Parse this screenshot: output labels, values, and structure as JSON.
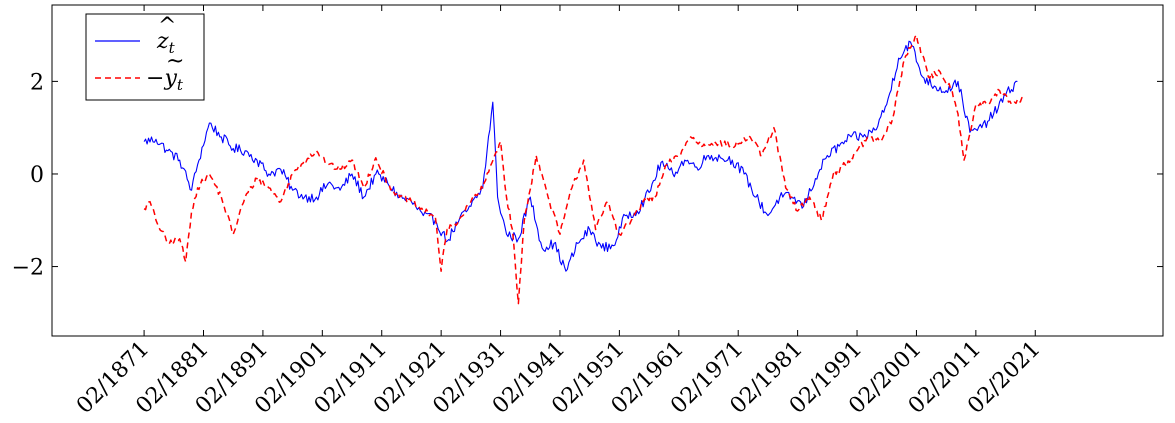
{
  "chart_data": {
    "type": "line",
    "title": "",
    "xlabel": "",
    "ylabel": "",
    "x_ticks": [
      "02/1871",
      "02/1881",
      "02/1891",
      "02/1901",
      "02/1911",
      "02/1921",
      "02/1931",
      "02/1941",
      "02/1951",
      "02/1961",
      "02/1971",
      "02/1981",
      "02/1991",
      "02/2001",
      "02/2011",
      "02/2021"
    ],
    "y_ticks": [
      "−2",
      "0",
      "2"
    ],
    "xlim": [
      1855.5,
      2042.5
    ],
    "ylim": [
      -3.5,
      3.65
    ],
    "grid": false,
    "legend_position": "top-left",
    "legend": [
      {
        "label": "ẑ_t",
        "display": "z",
        "accent": "^",
        "sub": "t",
        "color": "#0000ff",
        "dash": "solid"
      },
      {
        "label": "−ỹ_t",
        "display": "y",
        "prefix": "−",
        "accent": "~",
        "sub": "t",
        "color": "#ff0000",
        "dash": "dashed"
      }
    ],
    "series": [
      {
        "name": "ẑ_t",
        "color": "#0000ff",
        "dash": "solid",
        "x": [
          1871,
          1873,
          1875,
          1877,
          1879,
          1880,
          1882,
          1884,
          1886,
          1888,
          1890,
          1892,
          1894,
          1896,
          1898,
          1900,
          1902,
          1904,
          1906,
          1908,
          1910,
          1912,
          1914,
          1916,
          1918,
          1920,
          1922,
          1924,
          1926,
          1928,
          1929.7,
          1930.5,
          1932,
          1934,
          1936,
          1938,
          1940,
          1942,
          1944,
          1946,
          1948,
          1950,
          1952,
          1954,
          1956,
          1958,
          1960,
          1962,
          1964,
          1966,
          1968,
          1970,
          1972,
          1974,
          1976,
          1978,
          1980,
          1982,
          1984,
          1986,
          1988,
          1990,
          1992,
          1994,
          1996,
          1998,
          2000,
          2002,
          2004,
          2006,
          2008,
          2010,
          2012,
          2014,
          2016,
          2018
        ],
        "y": [
          0.7,
          0.75,
          0.5,
          0.3,
          -0.35,
          0.2,
          1.1,
          0.8,
          0.55,
          0.5,
          0.3,
          0.0,
          0.1,
          -0.35,
          -0.5,
          -0.5,
          -0.2,
          -0.35,
          0.0,
          -0.5,
          0.0,
          -0.2,
          -0.5,
          -0.6,
          -0.9,
          -1.0,
          -1.45,
          -1.0,
          -0.7,
          -0.3,
          1.55,
          -0.5,
          -1.3,
          -1.4,
          -0.5,
          -1.6,
          -1.5,
          -2.1,
          -1.5,
          -1.2,
          -1.6,
          -1.55,
          -0.9,
          -0.8,
          -0.4,
          0.25,
          0.0,
          0.3,
          0.15,
          0.4,
          0.35,
          0.3,
          0.0,
          -0.5,
          -0.9,
          -0.5,
          -0.5,
          -0.7,
          -0.1,
          0.4,
          0.6,
          0.8,
          0.8,
          0.95,
          1.5,
          2.5,
          2.85,
          2.1,
          1.9,
          1.8,
          2.0,
          0.9,
          1.0,
          1.3,
          1.7,
          2.0
        ]
      },
      {
        "name": "−ỹ_t",
        "color": "#ff0000",
        "dash": "dashed",
        "x": [
          1871,
          1872,
          1873,
          1875,
          1877,
          1878,
          1879,
          1880,
          1882,
          1884,
          1886,
          1888,
          1890,
          1892,
          1894,
          1896,
          1898,
          1900,
          1902,
          1904,
          1906,
          1908,
          1910,
          1912,
          1914,
          1916,
          1918,
          1920,
          1921,
          1922,
          1924,
          1926,
          1928,
          1930,
          1931,
          1932,
          1933,
          1934,
          1935,
          1937,
          1939,
          1941,
          1943,
          1945,
          1947,
          1949,
          1951,
          1953,
          1955,
          1957,
          1959,
          1961,
          1963,
          1965,
          1967,
          1970,
          1973,
          1975,
          1977,
          1979,
          1981,
          1983,
          1985,
          1987,
          1989,
          1991,
          1993,
          1995,
          1997,
          1999,
          2001,
          2003,
          2005,
          2007,
          2008,
          2009,
          2011,
          2013,
          2015,
          2017,
          2019
        ],
        "y": [
          -0.75,
          -0.6,
          -1.0,
          -1.5,
          -1.4,
          -1.9,
          -0.8,
          -0.3,
          0.0,
          -0.5,
          -1.3,
          -0.5,
          -0.1,
          -0.3,
          -0.6,
          0.0,
          0.3,
          0.5,
          0.2,
          0.1,
          0.3,
          -0.3,
          0.35,
          -0.2,
          -0.5,
          -0.6,
          -0.8,
          -0.9,
          -2.1,
          -1.2,
          -1.0,
          -0.6,
          -0.3,
          0.4,
          0.7,
          -0.5,
          -1.2,
          -2.8,
          -1.0,
          0.4,
          -0.5,
          -1.3,
          -0.3,
          0.3,
          -1.2,
          -0.6,
          -1.3,
          -1.0,
          -0.6,
          -0.5,
          0.2,
          0.4,
          0.8,
          0.6,
          0.7,
          0.6,
          0.8,
          0.4,
          1.0,
          -0.3,
          -0.8,
          -0.5,
          -1.0,
          0.0,
          0.2,
          0.5,
          0.8,
          0.7,
          1.2,
          2.5,
          3.0,
          2.1,
          2.2,
          1.8,
          1.3,
          0.3,
          1.5,
          1.5,
          1.8,
          1.5,
          1.6
        ]
      }
    ]
  }
}
